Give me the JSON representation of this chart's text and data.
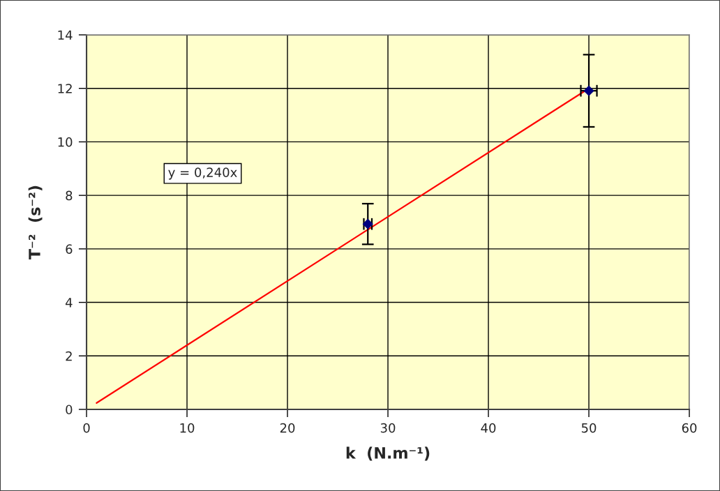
{
  "chart_data": {
    "type": "scatter",
    "xlabel": "k  (N.m⁻¹)",
    "ylabel": "T⁻²  (s⁻²)",
    "annotations": [
      "y = 0,240x"
    ],
    "xlim": [
      0,
      60
    ],
    "xticks": [
      0,
      10,
      20,
      30,
      40,
      50,
      60
    ],
    "ylim": [
      0,
      14
    ],
    "yticks": [
      0,
      2,
      4,
      6,
      8,
      10,
      12,
      14
    ],
    "grid": true,
    "marker": "diamond",
    "series": [
      {
        "x": [
          28,
          50
        ],
        "values": [
          6.93,
          11.91
        ],
        "errors": [
          0.76,
          1.35
        ],
        "xerrors": [
          0.4,
          0.8
        ],
        "color": "#000080"
      },
      {
        "type": "line",
        "x": [
          1,
          50
        ],
        "values": [
          0.24,
          12.0
        ],
        "color": "#ff0000",
        "marker": "none",
        "line_style": "solid"
      }
    ]
  }
}
